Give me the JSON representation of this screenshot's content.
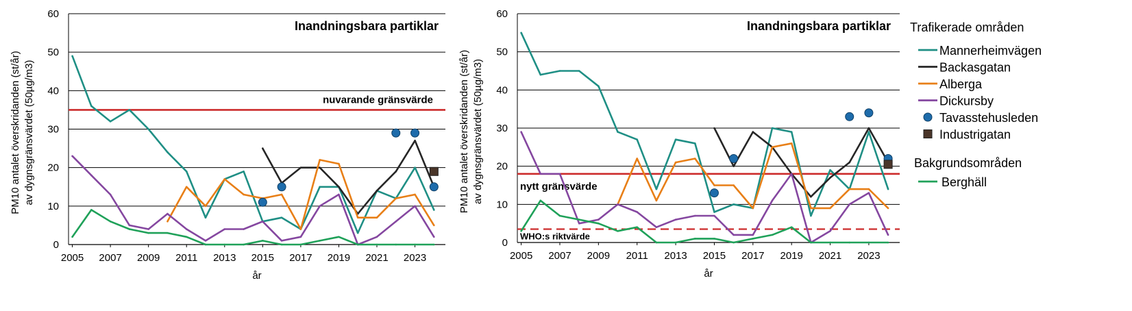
{
  "colors": {
    "Mannerheimvägen": "#1f8f85",
    "Backasgatan": "#262626",
    "Alberga": "#e87f17",
    "Dickursby": "#8547a0",
    "Tavasstehusleden": "#1e6cab",
    "Industrigatan": "#4a3529",
    "Berghäll": "#1fa159",
    "limit_line": "#cc2b2b"
  },
  "legend": {
    "heading_traffic": "Trafikerade områden",
    "heading_background": "Bakgrundsområden",
    "items_traffic": [
      {
        "name": "Mannerheimvägen",
        "marker": "line"
      },
      {
        "name": "Backasgatan",
        "marker": "line"
      },
      {
        "name": "Alberga",
        "marker": "line"
      },
      {
        "name": "Dickursby",
        "marker": "line"
      },
      {
        "name": "Tavasstehusleden",
        "marker": "circle"
      },
      {
        "name": "Industrigatan",
        "marker": "square"
      }
    ],
    "items_background": [
      {
        "name": "Berghäll",
        "marker": "line"
      }
    ]
  },
  "chart_data": [
    {
      "type": "line",
      "title": "Inandningsbara partiklar",
      "xlabel": "år",
      "ylabel_line1": "PM10 antalet överskridanden (st/år)",
      "ylabel_line2": "av dygnsgränsvärdet (50µg/m3)",
      "ylim": [
        0,
        60
      ],
      "yticks": [
        "0",
        "10",
        "20",
        "30",
        "40",
        "50",
        "60"
      ],
      "xlim": [
        2004.8,
        2024.6
      ],
      "xticks": [
        "2005",
        "2007",
        "2009",
        "2011",
        "2013",
        "2015",
        "2017",
        "2019",
        "2021",
        "2023"
      ],
      "grid": "horizontal",
      "reference_lines": [
        {
          "label": "nuvarande gränsvärde",
          "value": 35,
          "style": "solid"
        }
      ],
      "series": [
        {
          "name": "Mannerheimvägen",
          "kind": "line",
          "x": [
            2005,
            2006,
            2007,
            2008,
            2009,
            2010,
            2011,
            2012,
            2013,
            2014,
            2015,
            2016,
            2017,
            2018,
            2019,
            2020,
            2021,
            2022,
            2023,
            2024
          ],
          "y": [
            49,
            36,
            32,
            35,
            30,
            24,
            19,
            7,
            17,
            19,
            6,
            7,
            4,
            15,
            15,
            3,
            14,
            12,
            20,
            9
          ]
        },
        {
          "name": "Backasgatan",
          "kind": "line",
          "x": [
            2015,
            2016,
            2017,
            2018,
            2019,
            2020,
            2021,
            2022,
            2023,
            2024
          ],
          "y": [
            25,
            16,
            20,
            20,
            15,
            8,
            14,
            19,
            27,
            15
          ]
        },
        {
          "name": "Alberga",
          "kind": "line",
          "x": [
            2010,
            2011,
            2012,
            2013,
            2014,
            2015,
            2016,
            2017,
            2018,
            2019,
            2020,
            2021,
            2022,
            2023,
            2024
          ],
          "y": [
            6,
            15,
            10,
            17,
            13,
            12,
            13,
            4,
            22,
            21,
            7,
            7,
            12,
            13,
            5
          ]
        },
        {
          "name": "Dickursby",
          "kind": "line",
          "x": [
            2005,
            2006,
            2007,
            2008,
            2009,
            2010,
            2011,
            2012,
            2013,
            2014,
            2015,
            2016,
            2017,
            2018,
            2019,
            2020,
            2021,
            2022,
            2023,
            2024
          ],
          "y": [
            23,
            18,
            13,
            5,
            4,
            8,
            4,
            1,
            4,
            4,
            6,
            1,
            2,
            10,
            13,
            0,
            2,
            6,
            10,
            2
          ]
        },
        {
          "name": "Berghäll",
          "kind": "line",
          "x": [
            2005,
            2006,
            2007,
            2008,
            2009,
            2010,
            2011,
            2012,
            2013,
            2014,
            2015,
            2016,
            2017,
            2018,
            2019,
            2020,
            2021,
            2022,
            2023,
            2024
          ],
          "y": [
            2,
            9,
            6,
            4,
            3,
            3,
            2,
            0,
            0,
            0,
            1,
            0,
            0,
            1,
            2,
            0,
            0,
            0,
            0,
            0
          ]
        },
        {
          "name": "Tavasstehusleden",
          "kind": "circle",
          "x": [
            2015,
            2016,
            2022,
            2023,
            2024
          ],
          "y": [
            11,
            15,
            29,
            29,
            15
          ]
        },
        {
          "name": "Industrigatan",
          "kind": "square",
          "x": [
            2024
          ],
          "y": [
            19
          ]
        }
      ]
    },
    {
      "type": "line",
      "title": "Inandningsbara partiklar",
      "xlabel": "år",
      "ylabel_line1": "PM10 antalet överskridanden (st/år)",
      "ylabel_line2": "av dygnsgränsvärdet (50µg/m3)",
      "ylim": [
        0,
        60
      ],
      "yticks": [
        "0",
        "10",
        "20",
        "30",
        "40",
        "50",
        "60"
      ],
      "xlim": [
        2004.8,
        2024.6
      ],
      "xticks": [
        "2005",
        "2007",
        "2009",
        "2011",
        "2013",
        "2015",
        "2017",
        "2019",
        "2021",
        "2023"
      ],
      "grid": "horizontal",
      "reference_lines": [
        {
          "label": "nytt gränsvärde",
          "value": 18,
          "style": "solid"
        },
        {
          "label": "WHO:s riktvärde",
          "value": 3.5,
          "style": "dashed"
        }
      ],
      "series": [
        {
          "name": "Mannerheimvägen",
          "kind": "line",
          "x": [
            2005,
            2006,
            2007,
            2008,
            2009,
            2010,
            2011,
            2012,
            2013,
            2014,
            2015,
            2016,
            2017,
            2018,
            2019,
            2020,
            2021,
            2022,
            2023,
            2024
          ],
          "y": [
            55,
            44,
            45,
            45,
            41,
            29,
            27,
            14,
            27,
            26,
            8,
            10,
            9,
            30,
            29,
            7,
            19,
            14,
            29,
            14
          ]
        },
        {
          "name": "Backasgatan",
          "kind": "line",
          "x": [
            2015,
            2016,
            2017,
            2018,
            2019,
            2020,
            2021,
            2022,
            2023,
            2024
          ],
          "y": [
            30,
            20,
            29,
            25,
            18,
            12,
            17,
            21,
            30,
            21
          ]
        },
        {
          "name": "Alberga",
          "kind": "line",
          "x": [
            2010,
            2011,
            2012,
            2013,
            2014,
            2015,
            2016,
            2017,
            2018,
            2019,
            2020,
            2021,
            2022,
            2023,
            2024
          ],
          "y": [
            10,
            22,
            11,
            21,
            22,
            15,
            15,
            9,
            25,
            26,
            9,
            9,
            14,
            14,
            9
          ]
        },
        {
          "name": "Dickursby",
          "kind": "line",
          "x": [
            2005,
            2006,
            2007,
            2008,
            2009,
            2010,
            2011,
            2012,
            2013,
            2014,
            2015,
            2016,
            2017,
            2018,
            2019,
            2020,
            2021,
            2022,
            2023,
            2024
          ],
          "y": [
            29,
            18,
            18,
            5,
            6,
            10,
            8,
            4,
            6,
            7,
            7,
            2,
            2,
            11,
            18,
            0,
            3,
            10,
            13,
            2
          ]
        },
        {
          "name": "Berghäll",
          "kind": "line",
          "x": [
            2005,
            2006,
            2007,
            2008,
            2009,
            2010,
            2011,
            2012,
            2013,
            2014,
            2015,
            2016,
            2017,
            2018,
            2019,
            2020,
            2021,
            2022,
            2023,
            2024
          ],
          "y": [
            3,
            11,
            7,
            6,
            5,
            3,
            4,
            0,
            0,
            1,
            1,
            0,
            1,
            2,
            4,
            0,
            0,
            0,
            0,
            0
          ]
        },
        {
          "name": "Tavasstehusleden",
          "kind": "circle",
          "x": [
            2015,
            2016,
            2022,
            2023,
            2024
          ],
          "y": [
            13,
            22,
            33,
            34,
            22
          ]
        },
        {
          "name": "Industrigatan",
          "kind": "square",
          "x": [
            2024
          ],
          "y": [
            20.5
          ]
        }
      ]
    }
  ]
}
